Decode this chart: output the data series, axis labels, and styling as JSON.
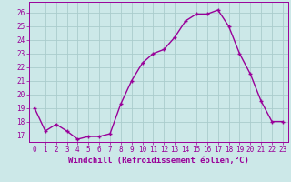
{
  "hours": [
    0,
    1,
    2,
    3,
    4,
    5,
    6,
    7,
    8,
    9,
    10,
    11,
    12,
    13,
    14,
    15,
    16,
    17,
    18,
    19,
    20,
    21,
    22,
    23
  ],
  "values": [
    19.0,
    17.3,
    17.8,
    17.3,
    16.7,
    16.9,
    16.9,
    17.1,
    19.3,
    21.0,
    22.3,
    23.0,
    23.3,
    24.2,
    25.4,
    25.9,
    25.9,
    26.2,
    25.0,
    23.0,
    21.5,
    19.5,
    18.0,
    18.0
  ],
  "line_color": "#990099",
  "marker": "+",
  "marker_size": 3.5,
  "bg_color": "#cce8e8",
  "grid_color": "#aacccc",
  "xlabel": "Windchill (Refroidissement éolien,°C)",
  "ylim": [
    16.5,
    26.8
  ],
  "xlim": [
    -0.5,
    23.5
  ],
  "yticks": [
    17,
    18,
    19,
    20,
    21,
    22,
    23,
    24,
    25,
    26
  ],
  "xticks": [
    0,
    1,
    2,
    3,
    4,
    5,
    6,
    7,
    8,
    9,
    10,
    11,
    12,
    13,
    14,
    15,
    16,
    17,
    18,
    19,
    20,
    21,
    22,
    23
  ],
  "xtick_labels": [
    "0",
    "1",
    "2",
    "3",
    "4",
    "5",
    "6",
    "7",
    "8",
    "9",
    "10",
    "11",
    "12",
    "13",
    "14",
    "15",
    "16",
    "17",
    "18",
    "19",
    "20",
    "21",
    "22",
    "23"
  ],
  "tick_label_size": 5.5,
  "xlabel_size": 6.5,
  "line_width": 1.0
}
